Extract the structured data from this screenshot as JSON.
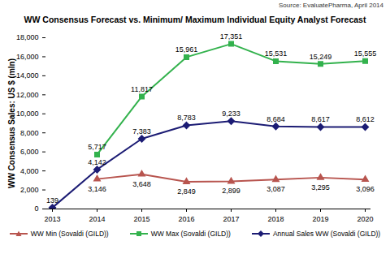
{
  "chart_data": {
    "type": "line",
    "title": "WW Consensus Forecast vs. Minimum/ Maximum Individual Equity Analyst Forecast",
    "subtitle": "Source: EvaluatePharma, April 2014",
    "y_label": "WW Consensus Sales: US $ (mln)",
    "categories": [
      "2013",
      "2014",
      "2015",
      "2016",
      "2017",
      "2018",
      "2019",
      "2020"
    ],
    "series": [
      {
        "name": "WW Min (Sovaldi (GILD))",
        "color": "#b8554f",
        "marker": "triangle",
        "values": [
          null,
          3146,
          3648,
          2849,
          2899,
          3087,
          3295,
          3096
        ],
        "value_labels": [
          null,
          "3,146",
          "3,648",
          "2,849",
          "2,899",
          "3,087",
          "3,295",
          "3,096"
        ]
      },
      {
        "name": "WW Max (Sovaldi (GILD))",
        "color": "#33b24d",
        "marker": "square",
        "values": [
          null,
          5717,
          11817,
          15961,
          17351,
          15531,
          15249,
          15555
        ],
        "value_labels": [
          null,
          "5,717",
          "11,817",
          "15,961",
          "17,351",
          "15,531",
          "15,249",
          "15,555"
        ]
      },
      {
        "name": "Annual Sales WW (Sovaldi (GILD))",
        "color": "#1c1c74",
        "marker": "diamond",
        "values": [
          139,
          4142,
          7383,
          8783,
          9233,
          8684,
          8617,
          8612
        ],
        "value_labels": [
          "139",
          "4,142",
          "7,383",
          "8,783",
          "9,233",
          "8,684",
          "8,617",
          "8,612"
        ]
      }
    ],
    "ylim": [
      0,
      18000
    ],
    "yticks": [
      0,
      {
        "value": 2000,
        "label": "2,000"
      },
      {
        "value": 4000,
        "label": "4,000"
      },
      {
        "value": 6000,
        "label": "6,000"
      },
      {
        "value": 8000,
        "label": "8,000"
      },
      {
        "value": 10000,
        "label": "10,000"
      },
      {
        "value": 12000,
        "label": "12,000"
      },
      {
        "value": 14000,
        "label": "14,000"
      },
      {
        "value": 16000,
        "label": "16,000"
      },
      {
        "value": 18000,
        "label": "18,000"
      }
    ],
    "grid": false,
    "legend": "bottom",
    "data_labels": true
  }
}
